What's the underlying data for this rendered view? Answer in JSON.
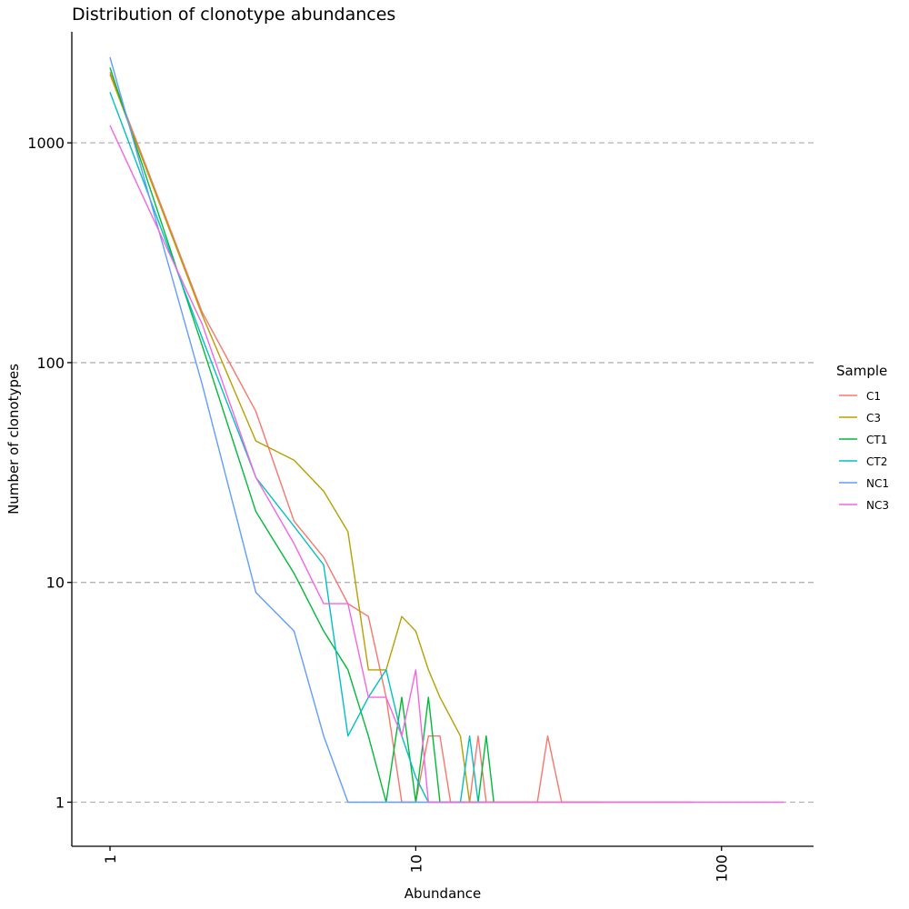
{
  "chart_data": {
    "type": "line",
    "title": "Distribution of clonotype abundances",
    "xlabel": "Abundance",
    "ylabel": "Number of clonotypes",
    "x_scale": "log10",
    "y_scale": "log10",
    "xlim": [
      0.75,
      200
    ],
    "ylim": [
      0.63,
      3200
    ],
    "x_ticks": [
      1,
      10,
      100
    ],
    "x_tick_labels": [
      "1",
      "10",
      "100"
    ],
    "y_ticks": [
      1,
      10,
      100,
      1000
    ],
    "y_tick_labels": [
      "1",
      "10",
      "100",
      "1000"
    ],
    "grid": "horizontal dashed major lines",
    "legend": {
      "title": "Sample",
      "placement": "right"
    },
    "series": [
      {
        "name": "C1",
        "color": "#F8766D",
        "x": [
          1,
          2,
          3,
          4,
          5,
          6,
          7,
          8,
          9,
          10,
          11,
          12,
          13,
          14,
          15,
          16,
          17,
          18,
          20,
          25,
          27,
          30,
          40,
          60,
          80
        ],
        "y": [
          2100,
          170,
          60,
          19,
          13,
          8,
          7,
          3,
          1,
          1,
          2,
          2,
          1,
          1,
          1,
          2,
          1,
          1,
          1,
          1,
          2,
          1,
          1,
          1,
          1
        ]
      },
      {
        "name": "C3",
        "color": "#B79F00",
        "x": [
          1,
          2,
          3,
          4,
          5,
          6,
          7,
          8,
          9,
          10,
          11,
          12,
          14,
          15,
          16,
          17,
          18,
          25,
          40
        ],
        "y": [
          2050,
          165,
          44,
          36,
          26,
          17,
          4,
          4,
          7,
          6,
          4,
          3,
          2,
          1,
          1,
          1,
          1,
          1,
          1
        ]
      },
      {
        "name": "CT1",
        "color": "#00BA38",
        "x": [
          1,
          2,
          3,
          4,
          5,
          6,
          7,
          8,
          9,
          10,
          11,
          12,
          14,
          15,
          16,
          17,
          18
        ],
        "y": [
          2200,
          120,
          21,
          11,
          6,
          4,
          2,
          1,
          3,
          1,
          3,
          1,
          1,
          1,
          1,
          2,
          1
        ]
      },
      {
        "name": "CT2",
        "color": "#00BFC4",
        "x": [
          1,
          2,
          3,
          4,
          5,
          6,
          7,
          8,
          9,
          10,
          11,
          14,
          15,
          16,
          17
        ],
        "y": [
          1700,
          130,
          30,
          18,
          12,
          2,
          3,
          4,
          2,
          1.3,
          1,
          1,
          2,
          1,
          1
        ]
      },
      {
        "name": "NC1",
        "color": "#619CFF",
        "x": [
          1,
          2,
          3,
          4,
          5,
          6,
          7,
          8,
          10,
          12,
          14
        ],
        "y": [
          2450,
          80,
          9,
          6,
          2,
          1,
          1,
          1,
          1,
          1,
          1
        ]
      },
      {
        "name": "NC3",
        "color": "#F564E3",
        "x": [
          1,
          2,
          3,
          4,
          5,
          6,
          7,
          8,
          9,
          10,
          11,
          12,
          15,
          20,
          40,
          80,
          160
        ],
        "y": [
          1200,
          150,
          30,
          15,
          8,
          8,
          3,
          3,
          2,
          4,
          1,
          1,
          1,
          1,
          1,
          1,
          1
        ]
      }
    ]
  }
}
